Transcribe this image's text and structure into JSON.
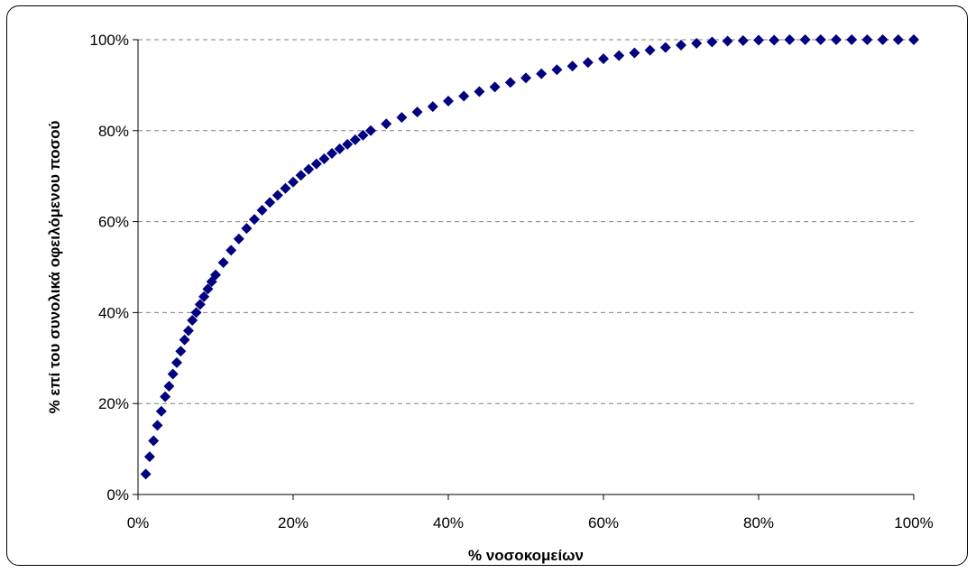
{
  "chart_data": {
    "type": "scatter",
    "title": "",
    "xlabel": "% νοσοκομείων",
    "ylabel": "% επί του συνολικά οφειλόμενου ποσού",
    "xlim": [
      0,
      100
    ],
    "ylim": [
      0,
      100
    ],
    "x_ticks": [
      "0%",
      "20%",
      "40%",
      "60%",
      "80%",
      "100%"
    ],
    "y_ticks": [
      "0%",
      "20%",
      "40%",
      "60%",
      "80%",
      "100%"
    ],
    "grid": "horizontal dashed",
    "legend": "none",
    "marker": "diamond",
    "colors": {
      "marker": "#000080",
      "grid": "#808080",
      "axis": "#000000"
    },
    "series": [
      {
        "x": [
          1.0,
          1.5,
          2.0,
          2.5,
          3.0,
          3.5,
          4.0,
          4.5,
          5.0,
          5.5,
          6.0,
          6.5,
          7.0,
          7.5,
          8.0,
          8.5,
          9.0,
          9.5,
          10.0,
          11.0,
          12.0,
          13.0,
          14.0,
          15.0,
          16.0,
          17.0,
          18.0,
          19.0,
          20.0,
          21.0,
          22.0,
          23.0,
          24.0,
          25.0,
          26.0,
          27.0,
          28.0,
          29.0,
          30.0,
          32.0,
          34.0,
          36.0,
          38.0,
          40.0,
          42.0,
          44.0,
          46.0,
          48.0,
          50.0,
          52.0,
          54.0,
          56.0,
          58.0,
          60.0,
          62.0,
          64.0,
          66.0,
          68.0,
          70.0,
          72.0,
          74.0,
          76.0,
          78.0,
          80.0,
          82.0,
          84.0,
          86.0,
          88.0,
          90.0,
          92.0,
          94.0,
          96.0,
          98.0,
          100.0
        ],
        "y": [
          4.5,
          8.3,
          11.8,
          15.2,
          18.3,
          21.5,
          23.8,
          26.5,
          29.0,
          31.5,
          34.0,
          36.0,
          38.3,
          40.0,
          41.8,
          43.5,
          45.2,
          46.8,
          48.3,
          51.0,
          53.7,
          56.2,
          58.5,
          60.5,
          62.5,
          64.2,
          65.8,
          67.3,
          68.7,
          70.2,
          71.5,
          72.7,
          73.8,
          75.0,
          76.0,
          77.0,
          78.0,
          79.0,
          80.0,
          81.5,
          82.9,
          84.1,
          85.3,
          86.5,
          87.6,
          88.6,
          89.6,
          90.6,
          91.6,
          92.5,
          93.4,
          94.2,
          95.0,
          95.8,
          96.5,
          97.1,
          97.7,
          98.3,
          98.8,
          99.2,
          99.5,
          99.7,
          99.8,
          99.9,
          99.9,
          100.0,
          100.0,
          100.0,
          100.0,
          100.0,
          100.0,
          100.0,
          100.0,
          100.0
        ]
      }
    ]
  }
}
